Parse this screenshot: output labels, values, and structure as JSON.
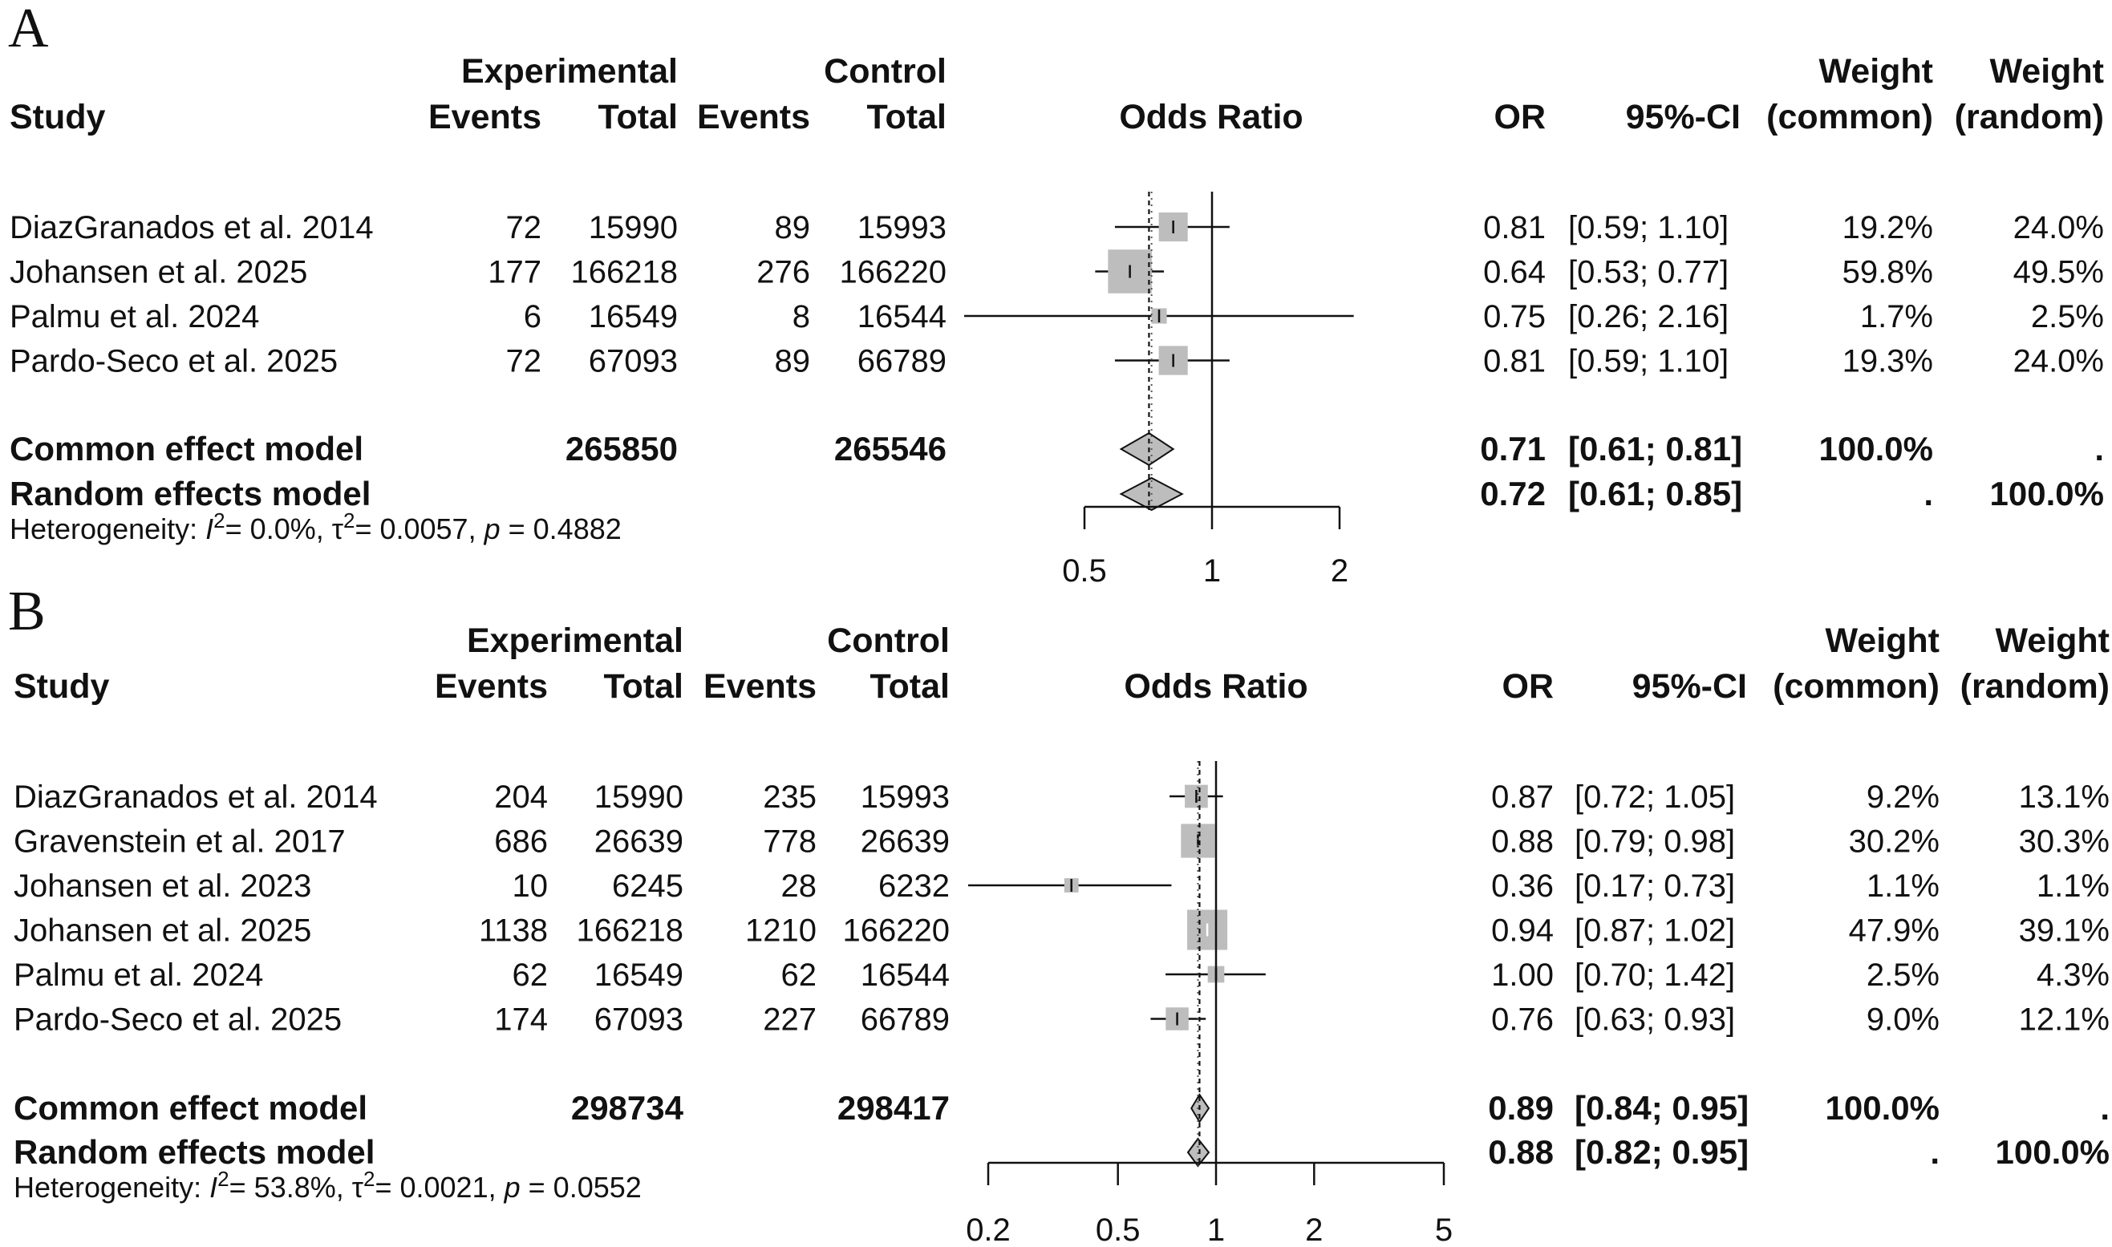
{
  "chart_data": [
    {
      "panel": "A",
      "type": "forest",
      "headers": {
        "study": "Study",
        "experimental": "Experimental",
        "control": "Control",
        "events": "Events",
        "total": "Total",
        "odds_ratio": "Odds Ratio",
        "or": "OR",
        "ci": "95%-CI",
        "weight": "Weight",
        "common": "(common)",
        "random": "(random)"
      },
      "studies": [
        {
          "name": "DiazGranados et al. 2014",
          "exp_events": "72",
          "exp_total": "15990",
          "ctrl_events": "89",
          "ctrl_total": "15993",
          "or": 0.81,
          "lo": 0.59,
          "hi": 1.1,
          "or_text": "0.81",
          "ci_text": "[0.59; 1.10]",
          "w_common": "19.2%",
          "w_random": "24.0%",
          "w_common_val": 19.2
        },
        {
          "name": "Johansen et al. 2025",
          "exp_events": "177",
          "exp_total": "166218",
          "ctrl_events": "276",
          "ctrl_total": "166220",
          "or": 0.64,
          "lo": 0.53,
          "hi": 0.77,
          "or_text": "0.64",
          "ci_text": "[0.53; 0.77]",
          "w_common": "59.8%",
          "w_random": "49.5%",
          "w_common_val": 59.8
        },
        {
          "name": "Palmu et al. 2024",
          "exp_events": "6",
          "exp_total": "16549",
          "ctrl_events": "8",
          "ctrl_total": "16544",
          "or": 0.75,
          "lo": 0.26,
          "hi": 2.16,
          "or_text": "0.75",
          "ci_text": "[0.26; 2.16]",
          "w_common": "1.7%",
          "w_random": "2.5%",
          "w_common_val": 1.7
        },
        {
          "name": "Pardo-Seco et al. 2025",
          "exp_events": "72",
          "exp_total": "67093",
          "ctrl_events": "89",
          "ctrl_total": "66789",
          "or": 0.81,
          "lo": 0.59,
          "hi": 1.1,
          "or_text": "0.81",
          "ci_text": "[0.59; 1.10]",
          "w_common": "19.3%",
          "w_random": "24.0%",
          "w_common_val": 19.3
        }
      ],
      "models": [
        {
          "name": "Common effect model",
          "exp_total": "265850",
          "ctrl_total": "265546",
          "or": 0.71,
          "lo": 0.61,
          "hi": 0.81,
          "or_text": "0.71",
          "ci_text": "[0.61; 0.81]",
          "w_common": "100.0%",
          "w_random": "."
        },
        {
          "name": "Random effects model",
          "exp_total": "",
          "ctrl_total": "",
          "or": 0.72,
          "lo": 0.61,
          "hi": 0.85,
          "or_text": "0.72",
          "ci_text": "[0.61; 0.85]",
          "w_common": ".",
          "w_random": "100.0%"
        }
      ],
      "heterogeneity": {
        "label": "Heterogeneity: ",
        "i2": "= 0.0%, ",
        "tau2": "= 0.0057, ",
        "p": "= 0.4882"
      },
      "axis": {
        "scale": "log",
        "ticks": [
          0.5,
          1,
          2
        ],
        "tick_labels": [
          "0.5",
          "1",
          "2"
        ],
        "reference": 1
      }
    },
    {
      "panel": "B",
      "type": "forest",
      "headers": {
        "study": "Study",
        "experimental": "Experimental",
        "control": "Control",
        "events": "Events",
        "total": "Total",
        "odds_ratio": "Odds Ratio",
        "or": "OR",
        "ci": "95%-CI",
        "weight": "Weight",
        "common": "(common)",
        "random": "(random)"
      },
      "studies": [
        {
          "name": "DiazGranados et al. 2014",
          "exp_events": "204",
          "exp_total": "15990",
          "ctrl_events": "235",
          "ctrl_total": "15993",
          "or": 0.87,
          "lo": 0.72,
          "hi": 1.05,
          "or_text": "0.87",
          "ci_text": "[0.72; 1.05]",
          "w_common": "9.2%",
          "w_random": "13.1%",
          "w_common_val": 9.2
        },
        {
          "name": "Gravenstein et al. 2017",
          "exp_events": "686",
          "exp_total": "26639",
          "ctrl_events": "778",
          "ctrl_total": "26639",
          "or": 0.88,
          "lo": 0.79,
          "hi": 0.98,
          "or_text": "0.88",
          "ci_text": "[0.79; 0.98]",
          "w_common": "30.2%",
          "w_random": "30.3%",
          "w_common_val": 30.2
        },
        {
          "name": "Johansen et al. 2023",
          "exp_events": "10",
          "exp_total": "6245",
          "ctrl_events": "28",
          "ctrl_total": "6232",
          "or": 0.36,
          "lo": 0.17,
          "hi": 0.73,
          "or_text": "0.36",
          "ci_text": "[0.17; 0.73]",
          "w_common": "1.1%",
          "w_random": "1.1%",
          "w_common_val": 1.1
        },
        {
          "name": "Johansen et al. 2025",
          "exp_events": "1138",
          "exp_total": "166218",
          "ctrl_events": "1210",
          "ctrl_total": "166220",
          "or": 0.94,
          "lo": 0.87,
          "hi": 1.02,
          "or_text": "0.94",
          "ci_text": "[0.87; 1.02]",
          "w_common": "47.9%",
          "w_random": "39.1%",
          "w_common_val": 47.9
        },
        {
          "name": "Palmu et al. 2024",
          "exp_events": "62",
          "exp_total": "16549",
          "ctrl_events": "62",
          "ctrl_total": "16544",
          "or": 1.0,
          "lo": 0.7,
          "hi": 1.42,
          "or_text": "1.00",
          "ci_text": "[0.70; 1.42]",
          "w_common": "2.5%",
          "w_random": "4.3%",
          "w_common_val": 2.5
        },
        {
          "name": "Pardo-Seco et al. 2025",
          "exp_events": "174",
          "exp_total": "67093",
          "ctrl_events": "227",
          "ctrl_total": "66789",
          "or": 0.76,
          "lo": 0.63,
          "hi": 0.93,
          "or_text": "0.76",
          "ci_text": "[0.63; 0.93]",
          "w_common": "9.0%",
          "w_random": "12.1%",
          "w_common_val": 9.0
        }
      ],
      "models": [
        {
          "name": "Common effect model",
          "exp_total": "298734",
          "ctrl_total": "298417",
          "or": 0.89,
          "lo": 0.84,
          "hi": 0.95,
          "or_text": "0.89",
          "ci_text": "[0.84; 0.95]",
          "w_common": "100.0%",
          "w_random": "."
        },
        {
          "name": "Random effects model",
          "exp_total": "",
          "ctrl_total": "",
          "or": 0.88,
          "lo": 0.82,
          "hi": 0.95,
          "or_text": "0.88",
          "ci_text": "[0.82; 0.95]",
          "w_common": ".",
          "w_random": "100.0%"
        }
      ],
      "heterogeneity": {
        "label": "Heterogeneity: ",
        "i2": "= 53.8%, ",
        "tau2": "= 0.0021, ",
        "p": "= 0.0552"
      },
      "axis": {
        "scale": "log",
        "ticks": [
          0.2,
          0.5,
          1,
          2,
          5
        ],
        "tick_labels": [
          "0.2",
          "0.5",
          "1",
          "2",
          "5"
        ],
        "reference": 1
      }
    }
  ],
  "colors": {
    "square": "#bdbdbd",
    "diamond": "#bdbdbd",
    "line": "#111111"
  }
}
